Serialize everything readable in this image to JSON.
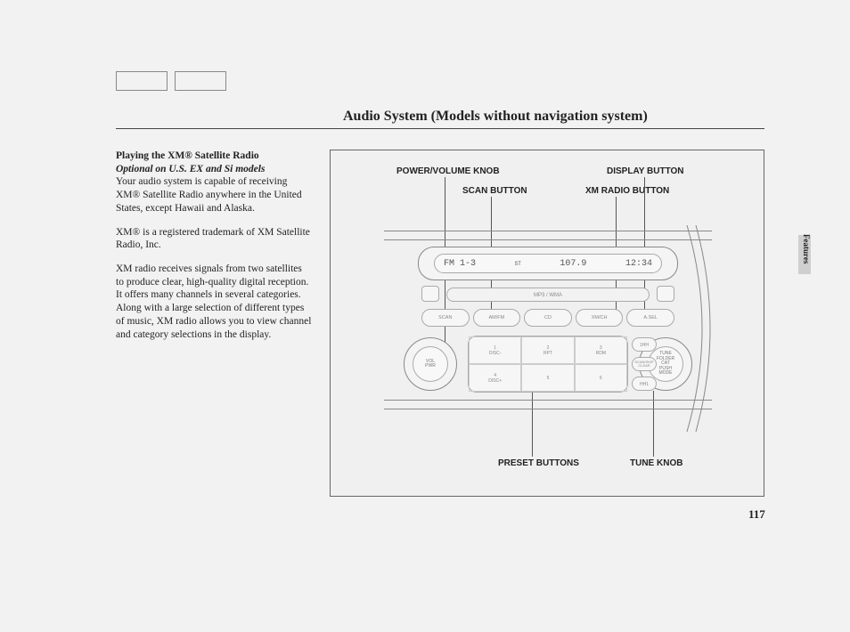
{
  "header": {
    "title": "Audio System (Models without navigation system)"
  },
  "body": {
    "heading": "Playing the XM® Satellite Radio",
    "subheading": "Optional on U.S. EX and Si models",
    "p1": "Your audio system is capable of receiving XM® Satellite Radio anywhere in the United States, except Hawaii and Alaska.",
    "p2": "XM® is a registered trademark of XM Satellite Radio, Inc.",
    "p3": "XM radio receives signals from two satellites to produce clear, high-quality digital reception. It offers many channels in several categories. Along with a large selection of different types of music, XM radio allows you to view channel and category selections in the display."
  },
  "callouts": {
    "power_volume": "POWER/VOLUME KNOB",
    "scan": "SCAN BUTTON",
    "display": "DISPLAY BUTTON",
    "xm": "XM RADIO BUTTON",
    "preset": "PRESET BUTTONS",
    "tune": "TUNE KNOB"
  },
  "radio": {
    "display_band": "FM 1-3",
    "display_st": "ST",
    "display_freq": "107.9",
    "display_clock": "12:34",
    "cd_label": "MP3 / WMA",
    "row_buttons": [
      "SCAN",
      "AM/FM",
      "CD",
      "XM/CH",
      "A.SEL"
    ],
    "knob_left": "VOL\nPWR",
    "knob_right": "TUNE\nFOLDER\nCAT\nPUSH\nMODE",
    "presets": [
      {
        "n": "1",
        "t": "DISC-"
      },
      {
        "n": "2",
        "t": "RPT"
      },
      {
        "n": "3",
        "t": "RDM"
      },
      {
        "n": "4",
        "t": "DISC+"
      },
      {
        "n": "5",
        "t": ""
      },
      {
        "n": "6",
        "t": ""
      }
    ],
    "side_buttons_top": "1HH",
    "side_buttons_bot": "HH1",
    "side_btn_left": "SCAN/SKIP\nCLEAR"
  },
  "page_number": "117",
  "tab_label": "Features",
  "colors": {
    "page_bg": "#f2f2f2",
    "line": "#888888",
    "rule": "#444444",
    "text": "#222222",
    "tab_bg": "#cfcfcf"
  }
}
